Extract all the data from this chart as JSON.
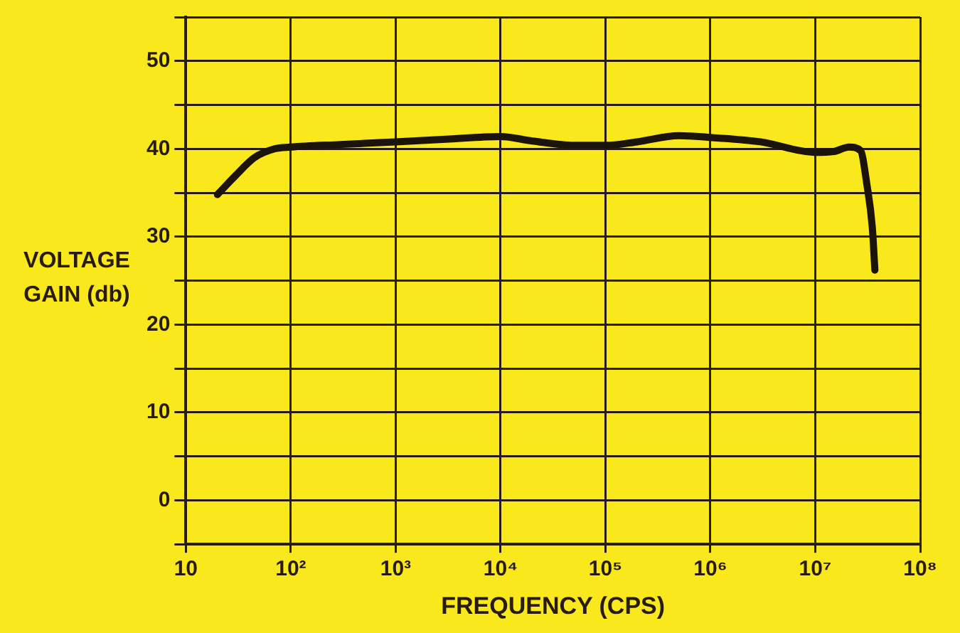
{
  "chart_data": {
    "type": "line",
    "xlabel": "FREQUENCY (CPS)",
    "ylabel": "VOLTAGE GAIN (db)",
    "x": [
      20,
      30,
      45,
      70,
      100,
      300,
      1000,
      3000,
      10000,
      20000,
      50000,
      100000,
      200000,
      500000,
      1000000,
      3000000,
      10000000,
      15000000,
      21000000,
      27000000,
      31000000,
      35000000,
      37000000
    ],
    "values": [
      34.8,
      37,
      39,
      40,
      40.2,
      40.5,
      40.8,
      41.1,
      41.4,
      40.9,
      40.4,
      40.4,
      40.8,
      41.5,
      41.3,
      40.8,
      39.6,
      39.7,
      40.2,
      39.8,
      36,
      31,
      26.2
    ],
    "color": "#1c140a",
    "marker": "none",
    "line_style": "solid",
    "log": "x",
    "grid": true,
    "xlim": [
      10,
      100000000
    ],
    "xticks": [
      10,
      {
        "value": 100,
        "label": "10²"
      },
      {
        "value": 1000,
        "label": "10³"
      },
      {
        "value": 10000,
        "label": "10⁴"
      },
      {
        "value": 100000,
        "label": "10⁵"
      },
      {
        "value": 1000000,
        "label": "10⁶"
      },
      {
        "value": 10000000,
        "label": "10⁷"
      },
      {
        "value": 100000000,
        "label": "10⁸"
      }
    ],
    "ylim": [
      -5,
      55
    ],
    "yticks": [
      {
        "value": -5,
        "label": null
      },
      0,
      {
        "value": 5,
        "label": null
      },
      10,
      {
        "value": 15,
        "label": null
      },
      20,
      {
        "value": 25,
        "label": null
      },
      30,
      {
        "value": 35,
        "label": null
      },
      40,
      {
        "value": 45,
        "label": null
      },
      50,
      {
        "value": 55,
        "label": null
      }
    ]
  }
}
